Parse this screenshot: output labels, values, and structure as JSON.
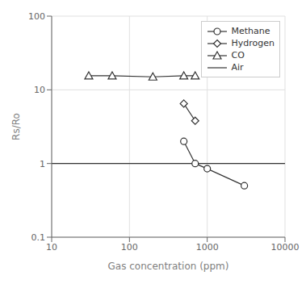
{
  "chart_data": {
    "type": "line",
    "title": "",
    "xlabel": "Gas concentration (ppm)",
    "ylabel": "Rs/Ro",
    "log": true,
    "xlim": [
      10,
      10000
    ],
    "ylim": [
      0.1,
      100
    ],
    "xticks": [
      10,
      100,
      1000,
      10000
    ],
    "yticks": [
      0.1,
      1,
      10,
      100
    ],
    "grid": true,
    "legend": "upper right",
    "series": [
      {
        "name": "Methane",
        "x": [
          500,
          700,
          1000,
          3000
        ],
        "values": [
          2.0,
          1.0,
          0.85,
          0.5
        ],
        "color": "#333333",
        "marker": "circle"
      },
      {
        "name": "Hydrogen",
        "x": [
          500,
          700
        ],
        "values": [
          6.5,
          3.8
        ],
        "color": "#333333",
        "marker": "diamond"
      },
      {
        "name": "CO",
        "x": [
          30,
          60,
          200,
          500,
          700
        ],
        "values": [
          15.5,
          15.5,
          15.0,
          15.5,
          15.5
        ],
        "color": "#333333",
        "marker": "triangle"
      },
      {
        "name": "Air",
        "type": "hline",
        "values": [
          1.0
        ],
        "color": "#333333"
      }
    ]
  }
}
